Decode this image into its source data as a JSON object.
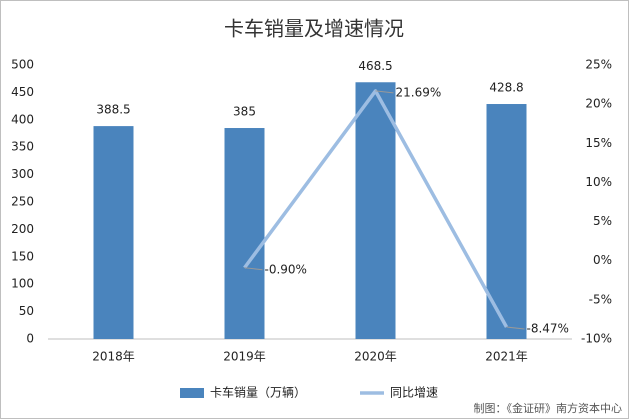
{
  "chart_data": {
    "type": "bar",
    "title": "卡车销量及增速情况",
    "categories": [
      "2018年",
      "2019年",
      "2020年",
      "2021年"
    ],
    "series": [
      {
        "name": "卡车销量（万辆）",
        "type": "bar",
        "color": "#4a84bd",
        "values": [
          388.5,
          385,
          468.5,
          428.8
        ]
      },
      {
        "name": "同比增速",
        "type": "line",
        "axis": "y2",
        "color": "#9dbde2",
        "values": [
          null,
          -0.9,
          21.69,
          -8.47
        ],
        "value_labels": [
          null,
          "-0.90%",
          "21.69%",
          "-8.47%"
        ]
      }
    ],
    "ylim": [
      0,
      500
    ],
    "yticks": [
      0,
      50,
      100,
      150,
      200,
      250,
      300,
      350,
      400,
      450,
      500
    ],
    "y2lim": [
      -10,
      25
    ],
    "y2ticks": [
      {
        "value": -10,
        "label": "-10%"
      },
      {
        "value": -5,
        "label": "-5%"
      },
      {
        "value": 0,
        "label": "0%"
      },
      {
        "value": 5,
        "label": "5%"
      },
      {
        "value": 10,
        "label": "10%"
      },
      {
        "value": 15,
        "label": "15%"
      },
      {
        "value": 20,
        "label": "20%"
      },
      {
        "value": 25,
        "label": "25%"
      }
    ],
    "grid": false,
    "legend": "bottom",
    "source": "制图：《金证研》南方资本中心"
  }
}
